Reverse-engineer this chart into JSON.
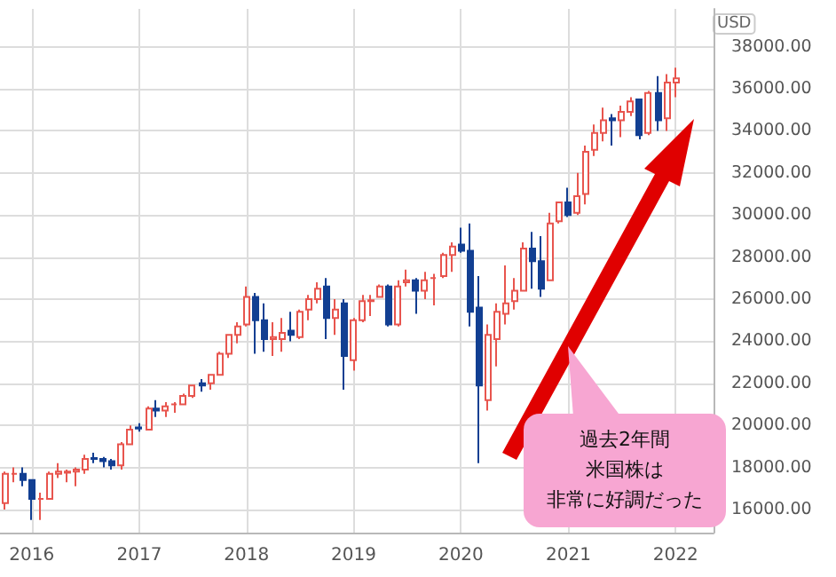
{
  "chart_data": {
    "type": "candlestick",
    "ylabel": "USD",
    "x": [
      "2015-10",
      "2015-11",
      "2015-12",
      "2016-01",
      "2016-02",
      "2016-03",
      "2016-04",
      "2016-05",
      "2016-06",
      "2016-07",
      "2016-08",
      "2016-09",
      "2016-10",
      "2016-11",
      "2016-12",
      "2017-01",
      "2017-02",
      "2017-03",
      "2017-04",
      "2017-05",
      "2017-06",
      "2017-07",
      "2017-08",
      "2017-09",
      "2017-10",
      "2017-11",
      "2017-12",
      "2018-01",
      "2018-02",
      "2018-03",
      "2018-04",
      "2018-05",
      "2018-06",
      "2018-07",
      "2018-08",
      "2018-09",
      "2018-10",
      "2018-11",
      "2018-12",
      "2019-01",
      "2019-02",
      "2019-03",
      "2019-04",
      "2019-05",
      "2019-06",
      "2019-07",
      "2019-08",
      "2019-09",
      "2019-10",
      "2019-11",
      "2019-12",
      "2020-01",
      "2020-02",
      "2020-03",
      "2020-04",
      "2020-05",
      "2020-06",
      "2020-07",
      "2020-08",
      "2020-09",
      "2020-10",
      "2020-11",
      "2020-12",
      "2021-01",
      "2021-02",
      "2021-03",
      "2021-04",
      "2021-05",
      "2021-06",
      "2021-07",
      "2021-08",
      "2021-09",
      "2021-10",
      "2021-11",
      "2021-12",
      "2022-01"
    ],
    "ohlc": [
      [
        16300,
        17800,
        16000,
        17700
      ],
      [
        17700,
        18000,
        17300,
        17700
      ],
      [
        17700,
        18000,
        17100,
        17400
      ],
      [
        17400,
        17400,
        15500,
        16500
      ],
      [
        16500,
        16800,
        15500,
        16500
      ],
      [
        16500,
        17800,
        16500,
        17700
      ],
      [
        17700,
        18200,
        17500,
        17800
      ],
      [
        17750,
        17900,
        17300,
        17800
      ],
      [
        17800,
        18000,
        17100,
        17900
      ],
      [
        17900,
        18600,
        17700,
        18400
      ],
      [
        18450,
        18700,
        18200,
        18400
      ],
      [
        18400,
        18500,
        18000,
        18300
      ],
      [
        18300,
        18400,
        17900,
        18100
      ],
      [
        18100,
        19200,
        17900,
        19100
      ],
      [
        19100,
        20000,
        19100,
        19800
      ],
      [
        19900,
        20100,
        19700,
        19850
      ],
      [
        19800,
        20900,
        19800,
        20800
      ],
      [
        20800,
        21200,
        20400,
        20700
      ],
      [
        20700,
        21100,
        20400,
        20900
      ],
      [
        21000,
        21100,
        20600,
        21000
      ],
      [
        21000,
        21500,
        21000,
        21400
      ],
      [
        21400,
        21900,
        21300,
        21900
      ],
      [
        22000,
        22200,
        21600,
        21900
      ],
      [
        22000,
        22400,
        21700,
        22400
      ],
      [
        22400,
        23500,
        22400,
        23400
      ],
      [
        23400,
        24300,
        23200,
        24300
      ],
      [
        24300,
        24900,
        23900,
        24700
      ],
      [
        24800,
        26600,
        24700,
        26100
      ],
      [
        26100,
        26300,
        23400,
        25000
      ],
      [
        25000,
        25800,
        23500,
        24100
      ],
      [
        24100,
        24900,
        23300,
        24200
      ],
      [
        24100,
        25100,
        23500,
        24400
      ],
      [
        24500,
        25400,
        24000,
        24300
      ],
      [
        24200,
        25500,
        24100,
        25400
      ],
      [
        25500,
        26200,
        25000,
        26000
      ],
      [
        26000,
        26800,
        25800,
        26500
      ],
      [
        26600,
        27000,
        24100,
        25100
      ],
      [
        25100,
        26000,
        24300,
        25500
      ],
      [
        25800,
        26000,
        21700,
        23300
      ],
      [
        23100,
        25100,
        22600,
        25000
      ],
      [
        25000,
        26200,
        24900,
        25900
      ],
      [
        25900,
        26200,
        25200,
        25950
      ],
      [
        26100,
        26700,
        26100,
        26600
      ],
      [
        26600,
        26700,
        24700,
        24800
      ],
      [
        24800,
        26900,
        24700,
        26600
      ],
      [
        26800,
        27400,
        26600,
        26900
      ],
      [
        26900,
        27000,
        25300,
        26400
      ],
      [
        26400,
        27300,
        26000,
        26900
      ],
      [
        27000,
        27200,
        25700,
        27000
      ],
      [
        27100,
        28200,
        27000,
        28100
      ],
      [
        28100,
        28700,
        27300,
        28500
      ],
      [
        28600,
        29400,
        28200,
        28300
      ],
      [
        28300,
        29600,
        24700,
        25400
      ],
      [
        25600,
        27100,
        18200,
        21900
      ],
      [
        21200,
        24800,
        20700,
        24300
      ],
      [
        24100,
        25800,
        22800,
        25400
      ],
      [
        25300,
        27600,
        24800,
        25800
      ],
      [
        25900,
        27000,
        25500,
        26400
      ],
      [
        26400,
        28700,
        26400,
        28400
      ],
      [
        28400,
        29200,
        26500,
        27800
      ],
      [
        27800,
        29000,
        26100,
        26500
      ],
      [
        26900,
        30100,
        26900,
        29600
      ],
      [
        29700,
        30600,
        29600,
        30600
      ],
      [
        30600,
        31300,
        29900,
        30000
      ],
      [
        30100,
        32000,
        30000,
        30900
      ],
      [
        31000,
        33300,
        30500,
        33000
      ],
      [
        33100,
        34300,
        32800,
        33900
      ],
      [
        33900,
        35100,
        33500,
        34500
      ],
      [
        34600,
        34800,
        33300,
        34500
      ],
      [
        34500,
        35200,
        33700,
        34900
      ],
      [
        34900,
        35600,
        34700,
        35400
      ],
      [
        35500,
        35500,
        33600,
        33800
      ],
      [
        33900,
        35900,
        33800,
        35800
      ],
      [
        35800,
        36600,
        34000,
        34500
      ],
      [
        34600,
        36700,
        34000,
        36300
      ],
      [
        36300,
        37000,
        35600,
        36500
      ]
    ],
    "colors": [
      "#e8554e",
      "#e8554e",
      "#123f92",
      "#123f92",
      "#e8554e",
      "#e8554e",
      "#e8554e",
      "#e8554e",
      "#e8554e",
      "#e8554e",
      "#123f92",
      "#123f92",
      "#123f92",
      "#e8554e",
      "#e8554e",
      "#123f92",
      "#e8554e",
      "#123f92",
      "#e8554e",
      "#e8554e",
      "#e8554e",
      "#e8554e",
      "#123f92",
      "#e8554e",
      "#e8554e",
      "#e8554e",
      "#e8554e",
      "#e8554e",
      "#123f92",
      "#123f92",
      "#e8554e",
      "#e8554e",
      "#123f92",
      "#e8554e",
      "#e8554e",
      "#e8554e",
      "#123f92",
      "#e8554e",
      "#123f92",
      "#e8554e",
      "#e8554e",
      "#e8554e",
      "#e8554e",
      "#123f92",
      "#e8554e",
      "#e8554e",
      "#123f92",
      "#e8554e",
      "#e8554e",
      "#e8554e",
      "#e8554e",
      "#123f92",
      "#123f92",
      "#123f92",
      "#e8554e",
      "#e8554e",
      "#e8554e",
      "#e8554e",
      "#e8554e",
      "#123f92",
      "#123f92",
      "#e8554e",
      "#e8554e",
      "#123f92",
      "#e8554e",
      "#e8554e",
      "#e8554e",
      "#e8554e",
      "#123f92",
      "#e8554e",
      "#e8554e",
      "#123f92",
      "#e8554e",
      "#123f92",
      "#e8554e",
      "#e8554e"
    ],
    "xlim": [
      "2015-09-15",
      "2022-05-10"
    ],
    "xticks": [
      "2016",
      "2017",
      "2018",
      "2019",
      "2020",
      "2021",
      "2022"
    ],
    "ylim": [
      14900,
      39800
    ],
    "yticks": [
      {
        "value": 16000,
        "label": "16000.00"
      },
      {
        "value": 18000,
        "label": "18000.00"
      },
      {
        "value": 20000,
        "label": "20000.00"
      },
      {
        "value": 22000,
        "label": "22000.00"
      },
      {
        "value": 24000,
        "label": "24000.00"
      },
      {
        "value": 26000,
        "label": "26000.00"
      },
      {
        "value": 28000,
        "label": "28000.00"
      },
      {
        "value": 30000,
        "label": "30000.00"
      },
      {
        "value": 32000,
        "label": "32000.00"
      },
      {
        "value": 34000,
        "label": "34000.00"
      },
      {
        "value": 36000,
        "label": "36000.00"
      },
      {
        "value": 38000,
        "label": "38000.00"
      }
    ],
    "grid": true,
    "annotations": [
      "過去2年間",
      "米国株は",
      "非常に好調だった"
    ]
  }
}
